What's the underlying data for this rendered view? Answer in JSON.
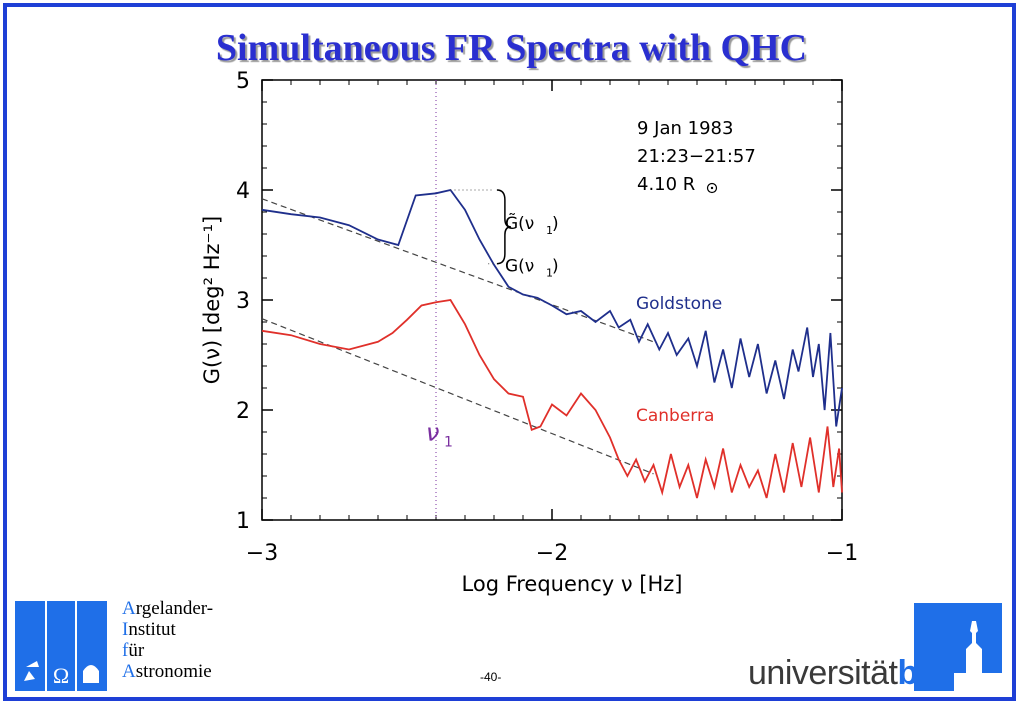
{
  "slide": {
    "title": "Simultaneous FR Spectra with QHC",
    "page_number": "-40-"
  },
  "institute": {
    "lines": [
      {
        "cap": "A",
        "rest": "rgelander-"
      },
      {
        "cap": "I",
        "rest": "nstitut"
      },
      {
        "cap": "f",
        "rest": "ür"
      },
      {
        "cap": "A",
        "rest": "stronomie"
      }
    ]
  },
  "university": {
    "word_plain": "universität",
    "word_bold": "bonn"
  },
  "colors": {
    "frame": "#1e3fd6",
    "goldstone": "#1f2f8c",
    "canberra": "#e0302a",
    "marker": "#7a2fa0",
    "logo_blue": "#1f6fe8"
  },
  "chart_data": {
    "type": "line",
    "xlabel": "Log Frequency ν [Hz]",
    "ylabel": "G(ν) [deg² Hz⁻¹]",
    "xlim": [
      -3,
      -1
    ],
    "ylim": [
      1,
      5
    ],
    "xticks": [
      -3,
      -2,
      -1
    ],
    "xtick_labels": [
      "−3",
      "−2",
      "−1"
    ],
    "yticks": [
      1,
      2,
      3,
      4,
      5
    ],
    "ytick_labels": [
      "1",
      "2",
      "3",
      "4",
      "5"
    ],
    "annotations": {
      "date": "9 Jan 1983",
      "time": "21:23−21:57",
      "distance": "4.10 R",
      "nu1_label": "ν",
      "nu1_sub": "1",
      "nu1_x": -2.4,
      "g_tilde_label": "G̃(ν",
      "g_label": "G(ν",
      "g_sub": "1",
      "g_close": ")",
      "g_tilde_value": 4.0,
      "g_value": 3.33
    },
    "series": [
      {
        "name": "Goldstone",
        "color": "#1f2f8c",
        "points": [
          [
            -3.0,
            3.82
          ],
          [
            -2.9,
            3.78
          ],
          [
            -2.8,
            3.75
          ],
          [
            -2.7,
            3.68
          ],
          [
            -2.6,
            3.55
          ],
          [
            -2.53,
            3.5
          ],
          [
            -2.47,
            3.95
          ],
          [
            -2.4,
            3.97
          ],
          [
            -2.35,
            4.0
          ],
          [
            -2.3,
            3.82
          ],
          [
            -2.25,
            3.55
          ],
          [
            -2.2,
            3.32
          ],
          [
            -2.15,
            3.12
          ],
          [
            -2.1,
            3.05
          ],
          [
            -2.05,
            3.02
          ],
          [
            -2.0,
            2.95
          ],
          [
            -1.95,
            2.87
          ],
          [
            -1.9,
            2.9
          ],
          [
            -1.85,
            2.8
          ],
          [
            -1.8,
            2.9
          ],
          [
            -1.77,
            2.75
          ],
          [
            -1.73,
            2.82
          ],
          [
            -1.7,
            2.62
          ],
          [
            -1.67,
            2.78
          ],
          [
            -1.63,
            2.55
          ],
          [
            -1.6,
            2.7
          ],
          [
            -1.57,
            2.5
          ],
          [
            -1.53,
            2.65
          ],
          [
            -1.5,
            2.4
          ],
          [
            -1.47,
            2.72
          ],
          [
            -1.44,
            2.25
          ],
          [
            -1.41,
            2.55
          ],
          [
            -1.38,
            2.2
          ],
          [
            -1.35,
            2.65
          ],
          [
            -1.32,
            2.3
          ],
          [
            -1.29,
            2.6
          ],
          [
            -1.26,
            2.15
          ],
          [
            -1.23,
            2.45
          ],
          [
            -1.2,
            2.1
          ],
          [
            -1.17,
            2.55
          ],
          [
            -1.15,
            2.35
          ],
          [
            -1.12,
            2.75
          ],
          [
            -1.1,
            2.3
          ],
          [
            -1.08,
            2.6
          ],
          [
            -1.06,
            2.0
          ],
          [
            -1.04,
            2.7
          ],
          [
            -1.02,
            1.85
          ],
          [
            -1.0,
            2.2
          ]
        ]
      },
      {
        "name": "Canberra",
        "color": "#e0302a",
        "points": [
          [
            -3.0,
            2.72
          ],
          [
            -2.9,
            2.68
          ],
          [
            -2.8,
            2.6
          ],
          [
            -2.7,
            2.55
          ],
          [
            -2.6,
            2.62
          ],
          [
            -2.55,
            2.7
          ],
          [
            -2.5,
            2.82
          ],
          [
            -2.45,
            2.95
          ],
          [
            -2.4,
            2.98
          ],
          [
            -2.35,
            3.0
          ],
          [
            -2.3,
            2.78
          ],
          [
            -2.25,
            2.5
          ],
          [
            -2.2,
            2.28
          ],
          [
            -2.15,
            2.15
          ],
          [
            -2.1,
            2.12
          ],
          [
            -2.07,
            1.82
          ],
          [
            -2.04,
            1.85
          ],
          [
            -2.0,
            2.05
          ],
          [
            -1.95,
            1.95
          ],
          [
            -1.9,
            2.15
          ],
          [
            -1.85,
            2.0
          ],
          [
            -1.8,
            1.75
          ],
          [
            -1.77,
            1.55
          ],
          [
            -1.74,
            1.4
          ],
          [
            -1.71,
            1.55
          ],
          [
            -1.68,
            1.35
          ],
          [
            -1.65,
            1.5
          ],
          [
            -1.62,
            1.25
          ],
          [
            -1.59,
            1.6
          ],
          [
            -1.56,
            1.3
          ],
          [
            -1.53,
            1.5
          ],
          [
            -1.5,
            1.2
          ],
          [
            -1.47,
            1.55
          ],
          [
            -1.44,
            1.3
          ],
          [
            -1.41,
            1.65
          ],
          [
            -1.38,
            1.25
          ],
          [
            -1.35,
            1.5
          ],
          [
            -1.32,
            1.3
          ],
          [
            -1.29,
            1.45
          ],
          [
            -1.26,
            1.2
          ],
          [
            -1.23,
            1.6
          ],
          [
            -1.2,
            1.25
          ],
          [
            -1.17,
            1.7
          ],
          [
            -1.14,
            1.3
          ],
          [
            -1.11,
            1.75
          ],
          [
            -1.08,
            1.25
          ],
          [
            -1.05,
            1.85
          ],
          [
            -1.03,
            1.3
          ],
          [
            -1.01,
            1.65
          ],
          [
            -1.0,
            1.25
          ]
        ]
      }
    ],
    "fits": [
      {
        "for": "Goldstone",
        "points": [
          [
            -3.0,
            3.92
          ],
          [
            -1.65,
            2.62
          ]
        ]
      },
      {
        "for": "Canberra",
        "points": [
          [
            -3.0,
            2.83
          ],
          [
            -1.65,
            1.42
          ]
        ]
      }
    ]
  }
}
